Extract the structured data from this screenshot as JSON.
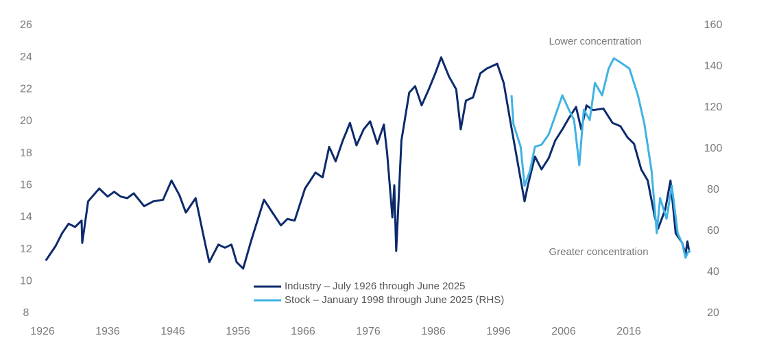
{
  "chart_data": {
    "type": "line",
    "xlim": [
      1926,
      2026
    ],
    "xticks": [
      1926,
      1936,
      1946,
      1956,
      1966,
      1976,
      1986,
      1996,
      2006,
      2016
    ],
    "ylim": [
      8,
      26
    ],
    "yticks": [
      8,
      10,
      12,
      14,
      16,
      18,
      20,
      22,
      24,
      26
    ],
    "y2lim": [
      20,
      160
    ],
    "y2ticks": [
      20,
      40,
      60,
      80,
      100,
      120,
      140,
      160
    ],
    "grid": false,
    "legend": "bottom",
    "annotations": [
      "Lower concentration",
      "Greater concentration"
    ],
    "series": [
      {
        "name": "Industry – July 1926 through June 2025",
        "color": "#0d2a6b",
        "x": [
          1926.5,
          1927,
          1928,
          1929,
          1930,
          1931,
          1932,
          1932.1,
          1933,
          1934.7,
          1936,
          1937,
          1938,
          1939,
          1940,
          1941.6,
          1943,
          1944.5,
          1945.8,
          1947,
          1948,
          1949.5,
          1951,
          1951.6,
          1953,
          1954,
          1955,
          1955.8,
          1956.8,
          1958,
          1960,
          1961.3,
          1962.6,
          1963.6,
          1964.7,
          1966.3,
          1967.9,
          1969,
          1970,
          1971,
          1972.1,
          1973.2,
          1974.2,
          1975.3,
          1976.3,
          1977.4,
          1978.4,
          1978.9,
          1979.7,
          1980,
          1980.3,
          1981.1,
          1982.3,
          1983.2,
          1984.2,
          1985.3,
          1986.3,
          1987.2,
          1988.4,
          1989.5,
          1990.2,
          1991,
          1992.1,
          1993.2,
          1994.2,
          1995.8,
          1996.8,
          1997.9,
          1999,
          2000,
          2000.5,
          2001.6,
          2002.6,
          2003.7,
          2004.7,
          2005.8,
          2006.8,
          2007.9,
          2008.7,
          2009.5,
          2010.5,
          2012.1,
          2013.5,
          2014.7,
          2015.8,
          2016.8,
          2017.9,
          2018.9,
          2020,
          2020.5,
          2021.6,
          2022.4,
          2023.2,
          2024.2,
          2024.7,
          2025,
          2025.3
        ],
        "values": [
          11.3,
          11.6,
          12.2,
          13.0,
          13.6,
          13.4,
          13.8,
          12.4,
          15.0,
          15.8,
          15.3,
          15.6,
          15.3,
          15.2,
          15.5,
          14.7,
          15.0,
          15.1,
          16.3,
          15.4,
          14.3,
          15.2,
          12.3,
          11.2,
          12.3,
          12.1,
          12.3,
          11.2,
          10.8,
          12.5,
          15.1,
          14.3,
          13.5,
          13.9,
          13.8,
          15.8,
          16.8,
          16.5,
          18.4,
          17.5,
          18.8,
          19.9,
          18.5,
          19.5,
          20.0,
          18.6,
          19.8,
          18.0,
          14.0,
          16.0,
          11.9,
          18.8,
          21.8,
          22.2,
          21.0,
          22.0,
          23.0,
          24.0,
          22.8,
          22.0,
          19.5,
          21.3,
          21.5,
          23.0,
          23.3,
          23.6,
          22.4,
          19.8,
          17.3,
          15.0,
          16.0,
          17.8,
          17.0,
          17.7,
          18.8,
          19.5,
          20.2,
          20.9,
          19.5,
          21.0,
          20.7,
          20.8,
          19.9,
          19.7,
          19.0,
          18.6,
          17.0,
          16.3,
          14.0,
          13.3,
          14.5,
          16.3,
          13.0,
          12.4,
          11.7,
          12.5,
          11.8
        ]
      },
      {
        "name": "Stock – January 1998 through June 2025 (RHS)",
        "color": "#41b2e3",
        "axis": "y2",
        "x": [
          1998,
          1998.3,
          1999.4,
          2000,
          2000.8,
          2001.6,
          2002.6,
          2003.7,
          2004.7,
          2005.8,
          2006.8,
          2007.6,
          2008.4,
          2009.1,
          2010,
          2010.8,
          2011.9,
          2012.9,
          2013.7,
          2014.7,
          2016.1,
          2017.4,
          2018.4,
          2019.5,
          2020.3,
          2020.8,
          2021.8,
          2022.6,
          2023.5,
          2024.2,
          2024.7,
          2025.3
        ],
        "values": [
          126,
          112,
          101,
          82,
          89,
          101,
          102,
          107,
          116,
          126,
          119,
          114,
          92,
          119,
          114,
          132,
          126,
          139,
          144,
          142,
          139,
          126,
          112,
          89,
          59,
          76,
          66,
          82,
          59,
          54,
          47,
          51
        ]
      }
    ]
  }
}
